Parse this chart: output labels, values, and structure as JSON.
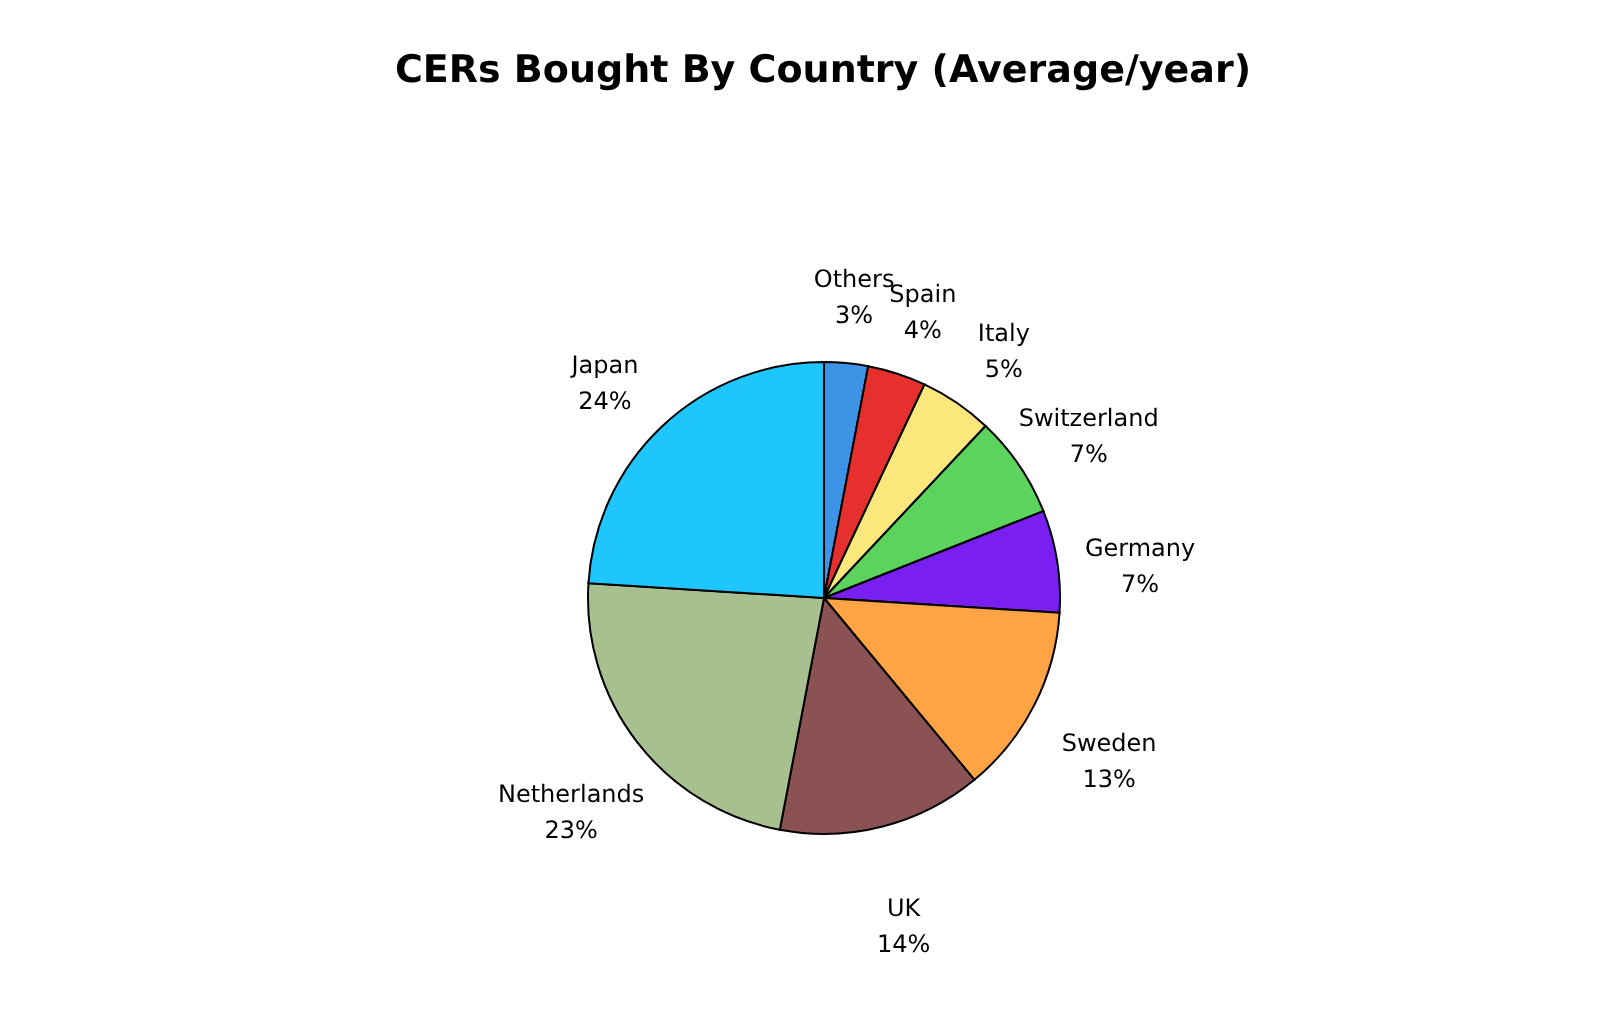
{
  "chart_data": {
    "type": "pie",
    "title": "CERs Bought By Country (Average/year)",
    "categories": [
      "Others",
      "Spain",
      "Italy",
      "Switzerland",
      "Germany",
      "Sweden",
      "UK",
      "Netherlands",
      "Japan"
    ],
    "values": [
      3,
      4,
      5,
      7,
      7,
      13,
      14,
      23,
      24
    ],
    "value_labels": [
      "3%",
      "4%",
      "5%",
      "7%",
      "7%",
      "13%",
      "14%",
      "23%",
      "24%"
    ],
    "colors": [
      "#3d94e6",
      "#e5302e",
      "#fbe77c",
      "#5cd35c",
      "#7a1ff2",
      "#ffa445",
      "#8a5252",
      "#a8bf90",
      "#1ec6fd"
    ]
  }
}
